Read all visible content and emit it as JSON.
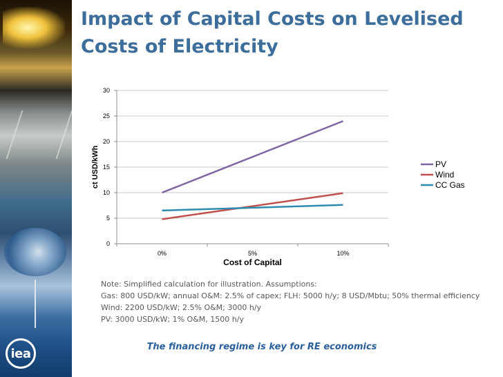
{
  "slide": {
    "title": "Impact of Capital Costs on Levelised Costs of Electricity",
    "logo_text": "iea",
    "notes": [
      "Note: Simplified calculation for illustration. Assumptions:",
      "Gas: 800 USD/kW; annual O&M: 2.5% of capex; FLH: 5000 h/y; 8 USD/Mbtu; 50% thermal efficiency",
      "Wind: 2200 USD/kW; 2.5% O&M; 3000 h/y",
      "PV: 3000 USD/kW; 1% O&M, 1500 h/y"
    ],
    "tagline": "The financing regime is key for RE economics"
  },
  "chart_data": {
    "type": "line",
    "title": "",
    "xlabel": "Cost of Capital",
    "ylabel": "ct USD/kWh",
    "categories": [
      "0%",
      "5%",
      "10%"
    ],
    "ylim": [
      0,
      30
    ],
    "yticks": [
      0,
      5,
      10,
      15,
      20,
      25,
      30
    ],
    "grid": true,
    "legend": "right",
    "series": [
      {
        "name": "PV",
        "values": [
          10,
          null,
          24
        ],
        "color": "#8064a2"
      },
      {
        "name": "Wind",
        "values": [
          4.8,
          null,
          9.9
        ],
        "color": "#c0504d"
      },
      {
        "name": "CC Gas",
        "values": [
          6.5,
          null,
          7.6
        ],
        "color": "#2e8bb0"
      }
    ]
  }
}
